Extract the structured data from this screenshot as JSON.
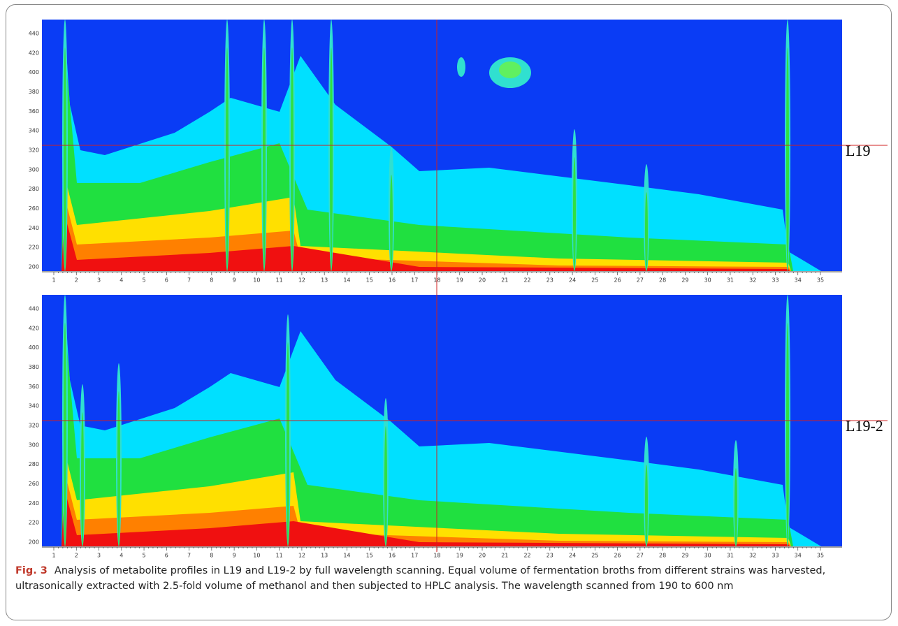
{
  "panels": [
    {
      "label": "L19",
      "yticks": [
        "440",
        "420",
        "400",
        "380",
        "360",
        "340",
        "320",
        "300",
        "280",
        "260",
        "240",
        "220",
        "200"
      ],
      "xticks": [
        "1",
        "2",
        "3",
        "4",
        "5",
        "6",
        "7",
        "8",
        "9",
        "10",
        "11",
        "12",
        "13",
        "14",
        "15",
        "16",
        "17",
        "18",
        "19",
        "20",
        "21",
        "22",
        "23",
        "24",
        "25",
        "26",
        "27",
        "28",
        "29",
        "30",
        "31",
        "32",
        "33",
        "34",
        "35"
      ]
    },
    {
      "label": "L19-2",
      "yticks": [
        "440",
        "420",
        "400",
        "380",
        "360",
        "340",
        "320",
        "300",
        "280",
        "260",
        "240",
        "220",
        "200"
      ],
      "xticks": [
        "1",
        "2",
        "3",
        "4",
        "5",
        "6",
        "7",
        "8",
        "9",
        "10",
        "11",
        "12",
        "13",
        "14",
        "15",
        "16",
        "17",
        "18",
        "19",
        "20",
        "21",
        "22",
        "23",
        "24",
        "25",
        "26",
        "27",
        "28",
        "29",
        "30",
        "31",
        "32",
        "33",
        "34",
        "35"
      ]
    }
  ],
  "caption": {
    "label": "Fig. 3",
    "text": "Analysis of metabolite profiles in L19 and L19-2 by full wavelength scanning. Equal volume of fermentation broths from different strains was harvested, ultrasonically extracted with 2.5-fold volume of methanol and then subjected to HPLC analysis. The wavelength scanned from 190 to 600 nm"
  }
}
